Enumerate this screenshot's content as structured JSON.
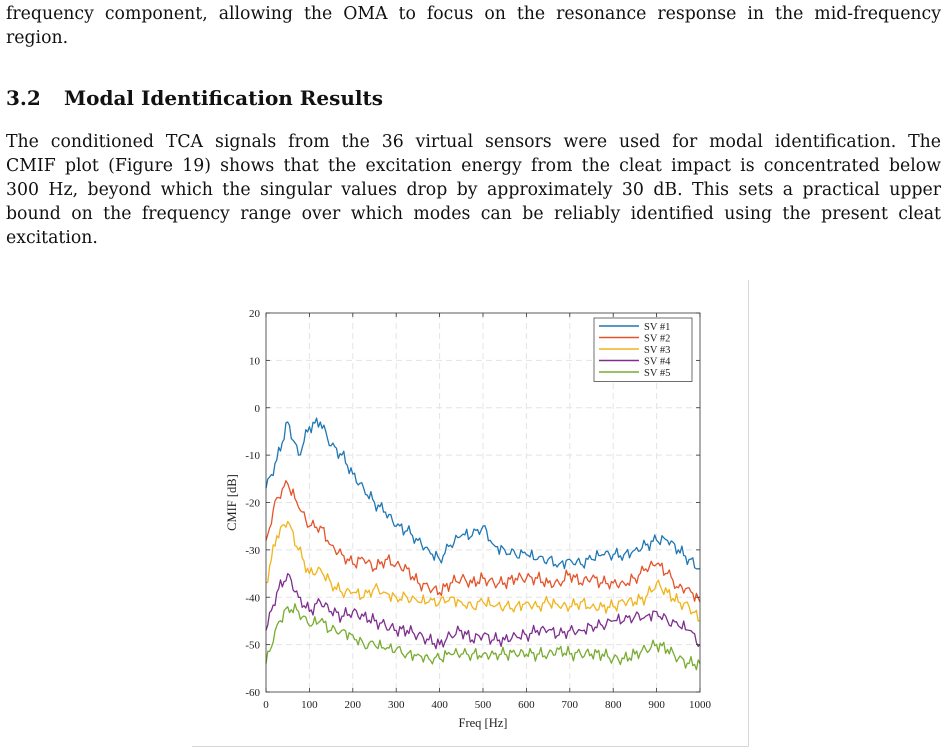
{
  "paragraph_top": {
    "lines": [
      "frequency component, allowing the OMA to focus on the resonance response in the mid-frequency",
      "region."
    ]
  },
  "section": {
    "number": "3.2",
    "title": "Modal Identification Results"
  },
  "paragraph_main": {
    "lines": [
      "The conditioned TCA signals from the 36 virtual sensors were used for modal identification. The",
      "CMIF plot (Figure 19) shows that the excitation energy from the cleat impact is concentrated below",
      "300 Hz, beyond which the singular values drop by approximately 30 dB. This sets a practical upper",
      "bound on the frequency range over which modes can be reliably identified using the present cleat",
      "excitation."
    ]
  },
  "chart_data": {
    "type": "line",
    "xlabel": "Freq [Hz]",
    "ylabel": "CMIF [dB]",
    "xlim": [
      0,
      1000
    ],
    "ylim": [
      -60,
      20
    ],
    "xticks": [
      0,
      100,
      200,
      300,
      400,
      500,
      600,
      700,
      800,
      900,
      1000
    ],
    "yticks": [
      20,
      10,
      0,
      -10,
      -20,
      -30,
      -40,
      -50,
      -60
    ],
    "grid": true,
    "legend_position": "top-right",
    "x": [
      0,
      25,
      50,
      75,
      100,
      125,
      150,
      175,
      200,
      225,
      250,
      275,
      300,
      325,
      350,
      375,
      400,
      425,
      450,
      475,
      500,
      525,
      550,
      575,
      600,
      625,
      650,
      675,
      700,
      725,
      750,
      775,
      800,
      825,
      850,
      875,
      900,
      925,
      950,
      975,
      1000
    ],
    "series": [
      {
        "name": "SV #1",
        "color": "#1f77b4",
        "values": [
          -17,
          -11,
          -3,
          -10,
          -4,
          -3,
          -8,
          -10,
          -14,
          -17,
          -20,
          -22,
          -25,
          -26,
          -28,
          -30,
          -32,
          -29,
          -27,
          -27,
          -25,
          -29,
          -30,
          -31,
          -31,
          -32,
          -32,
          -33,
          -32,
          -33,
          -32,
          -31,
          -31,
          -31,
          -30,
          -29,
          -28,
          -28,
          -30,
          -32,
          -34
        ]
      },
      {
        "name": "SV #2",
        "color": "#e5532a",
        "values": [
          -28,
          -19,
          -16,
          -21,
          -25,
          -25,
          -29,
          -31,
          -33,
          -32,
          -34,
          -32,
          -33,
          -34,
          -37,
          -38,
          -39,
          -37,
          -36,
          -37,
          -36,
          -37,
          -37,
          -36,
          -36,
          -36,
          -37,
          -37,
          -35,
          -37,
          -36,
          -37,
          -37,
          -37,
          -36,
          -34,
          -33,
          -35,
          -38,
          -38,
          -41
        ]
      },
      {
        "name": "SV #3",
        "color": "#f2b31b",
        "values": [
          -37,
          -27,
          -24,
          -30,
          -35,
          -34,
          -37,
          -39,
          -39,
          -40,
          -38,
          -39,
          -40,
          -40,
          -41,
          -41,
          -41,
          -40,
          -41,
          -42,
          -41,
          -42,
          -42,
          -42,
          -41,
          -42,
          -41,
          -42,
          -42,
          -41,
          -42,
          -42,
          -42,
          -41,
          -41,
          -40,
          -37,
          -39,
          -41,
          -42,
          -45
        ]
      },
      {
        "name": "SV #4",
        "color": "#7e2f8e",
        "values": [
          -47,
          -39,
          -35,
          -40,
          -43,
          -41,
          -43,
          -44,
          -43,
          -44,
          -45,
          -46,
          -47,
          -47,
          -48,
          -49,
          -50,
          -48,
          -47,
          -49,
          -48,
          -49,
          -49,
          -48,
          -48,
          -47,
          -47,
          -48,
          -47,
          -47,
          -46,
          -46,
          -45,
          -45,
          -44,
          -44,
          -43,
          -45,
          -46,
          -47,
          -50
        ]
      },
      {
        "name": "SV #5",
        "color": "#77ac30",
        "values": [
          -54,
          -46,
          -42,
          -43,
          -46,
          -45,
          -47,
          -47,
          -48,
          -50,
          -50,
          -51,
          -51,
          -52,
          -52,
          -53,
          -53,
          -52,
          -52,
          -52,
          -52,
          -52,
          -52,
          -52,
          -52,
          -52,
          -52,
          -51,
          -52,
          -52,
          -52,
          -52,
          -53,
          -53,
          -52,
          -51,
          -50,
          -51,
          -53,
          -54,
          -54
        ]
      }
    ]
  }
}
